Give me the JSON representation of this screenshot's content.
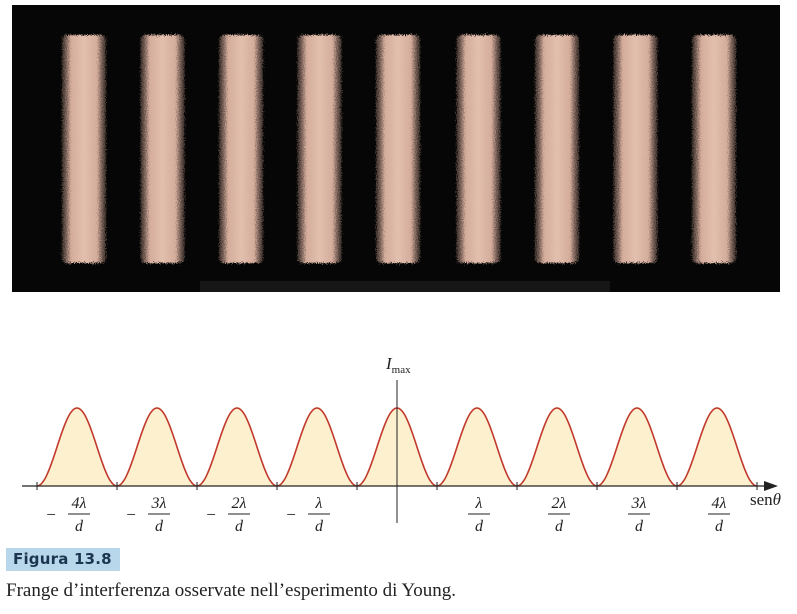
{
  "figure": {
    "label": "Figura 13.8",
    "caption": "Frange d’interferenza osservate nell’esperimento di Young."
  },
  "photo": {
    "fringe_count": 9,
    "fringe_color": "#d9b3a3",
    "background_color": "#060606"
  },
  "plot": {
    "y_label_main": "I",
    "y_label_sub": "max",
    "x_axis_label_prefix": "sen",
    "x_axis_label_symbol": "θ",
    "curve_color": "#c0392b",
    "fill_color": "#fdf0cf",
    "ticks": [
      {
        "sign": "−",
        "num": "4λ",
        "den": "d"
      },
      {
        "sign": "−",
        "num": "3λ",
        "den": "d"
      },
      {
        "sign": "−",
        "num": "2λ",
        "den": "d"
      },
      {
        "sign": "−",
        "num": "λ",
        "den": "d"
      },
      {
        "sign": "",
        "num": "λ",
        "den": "d"
      },
      {
        "sign": "",
        "num": "2λ",
        "den": "d"
      },
      {
        "sign": "",
        "num": "3λ",
        "den": "d"
      },
      {
        "sign": "",
        "num": "4λ",
        "den": "d"
      }
    ],
    "peak_orders": [
      -4,
      -3,
      -2,
      -1,
      0,
      1,
      2,
      3,
      4
    ]
  }
}
